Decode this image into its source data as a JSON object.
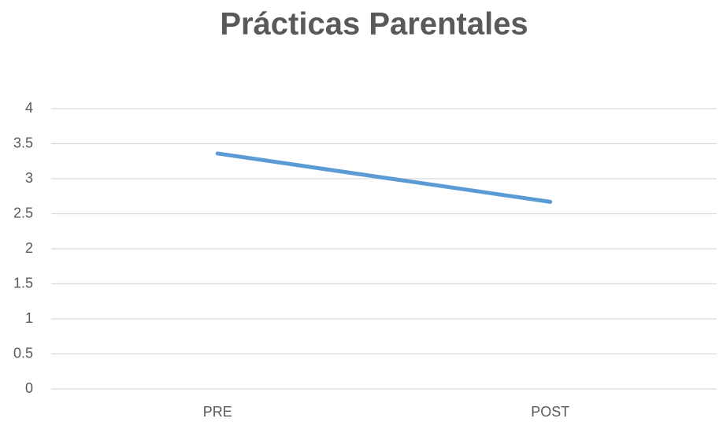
{
  "chart_data": {
    "type": "line",
    "title": "Prácticas Parentales",
    "categories": [
      "PRE",
      "POST"
    ],
    "values": [
      3.36,
      2.67
    ],
    "color": "#5b9bd5",
    "ylim": [
      0,
      4
    ],
    "yticks": [
      0,
      0.5,
      1,
      1.5,
      2,
      2.5,
      3,
      3.5,
      4
    ],
    "grid": true
  }
}
